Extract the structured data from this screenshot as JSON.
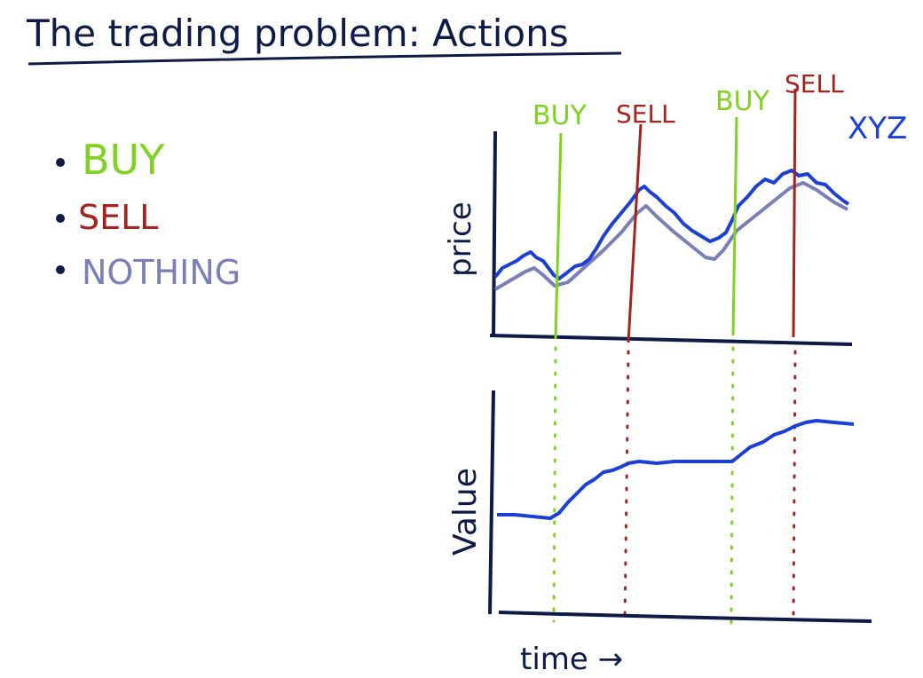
{
  "title": "The trading problem: Actions",
  "actions": [
    {
      "label": "BUY",
      "color": "#7ed321"
    },
    {
      "label": "SELL",
      "color": "#a3231f"
    },
    {
      "label": "NOTHING",
      "color": "#7b7fb8"
    }
  ],
  "markers": [
    {
      "label": "BUY",
      "color": "#7ed321"
    },
    {
      "label": "SELL",
      "color": "#a3231f"
    },
    {
      "label": "BUY",
      "color": "#7ed321"
    },
    {
      "label": "SELL",
      "color": "#a3231f"
    }
  ],
  "stock_label": "XYZ",
  "price_ylabel": "price",
  "value_ylabel": "Value",
  "xlabel": "time →",
  "colors": {
    "ink": "#0e1b47",
    "price_line": "#1c3fd6",
    "shadow_line": "#7b7fb8",
    "buy": "#7ed321",
    "sell": "#a3231f"
  }
}
